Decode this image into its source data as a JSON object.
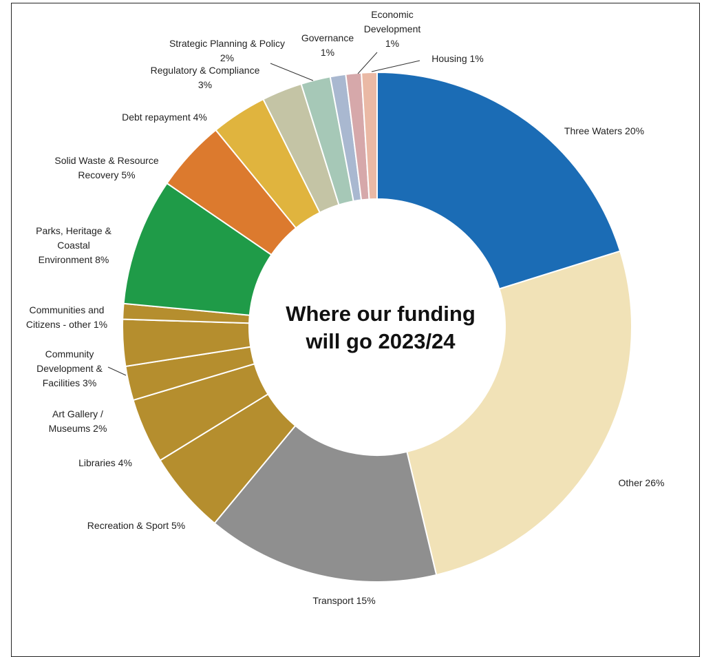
{
  "chart_data": {
    "type": "pie",
    "title_lines": [
      "Where our funding",
      "will go 2023/24"
    ],
    "slices": [
      {
        "label": "Three Waters",
        "pct_text": "20%",
        "value": 20.5,
        "color": "#1b6cb5"
      },
      {
        "label": "Other",
        "pct_text": "26%",
        "value": 26.5,
        "color": "#f1e2b7"
      },
      {
        "label": "Transport",
        "pct_text": "15%",
        "value": 15,
        "color": "#8f8f8f"
      },
      {
        "label": "Recreation & Sport",
        "pct_text": "5%",
        "value": 5.3,
        "color": "#b58e2e"
      },
      {
        "label": "Libraries",
        "pct_text": "4%",
        "value": 4.2,
        "color": "#b58e2e"
      },
      {
        "label": "Art Gallery / Museums",
        "pct_text": "2%",
        "value": 2.2,
        "color": "#b58e2e"
      },
      {
        "label": "Community Development & Facilities",
        "pct_text": "3%",
        "value": 3,
        "color": "#b58e2e"
      },
      {
        "label": "Communities and Citizens - other",
        "pct_text": "1%",
        "value": 1,
        "color": "#b58e2e"
      },
      {
        "label": "Parks, Heritage & Coastal Environment",
        "pct_text": "8%",
        "value": 8.2,
        "color": "#1f9b48"
      },
      {
        "label": "Solid Waste & Resource Recovery",
        "pct_text": "5%",
        "value": 4.6,
        "color": "#dc7a2e"
      },
      {
        "label": "Debt repayment",
        "pct_text": "4%",
        "value": 3.6,
        "color": "#e0b43e"
      },
      {
        "label": "Regulatory & Compliance",
        "pct_text": "3%",
        "value": 2.6,
        "color": "#c4c4a5"
      },
      {
        "label": "Strategic Planning & Policy",
        "pct_text": "2%",
        "value": 1.9,
        "color": "#a6c8b7"
      },
      {
        "label": "Governance",
        "pct_text": "1%",
        "value": 1,
        "color": "#a9b8d0"
      },
      {
        "label": "Economic Development",
        "pct_text": "1%",
        "value": 1,
        "color": "#d6a8aa"
      },
      {
        "label": "Housing",
        "pct_text": "1%",
        "value": 1,
        "color": "#eab9a5"
      }
    ]
  }
}
